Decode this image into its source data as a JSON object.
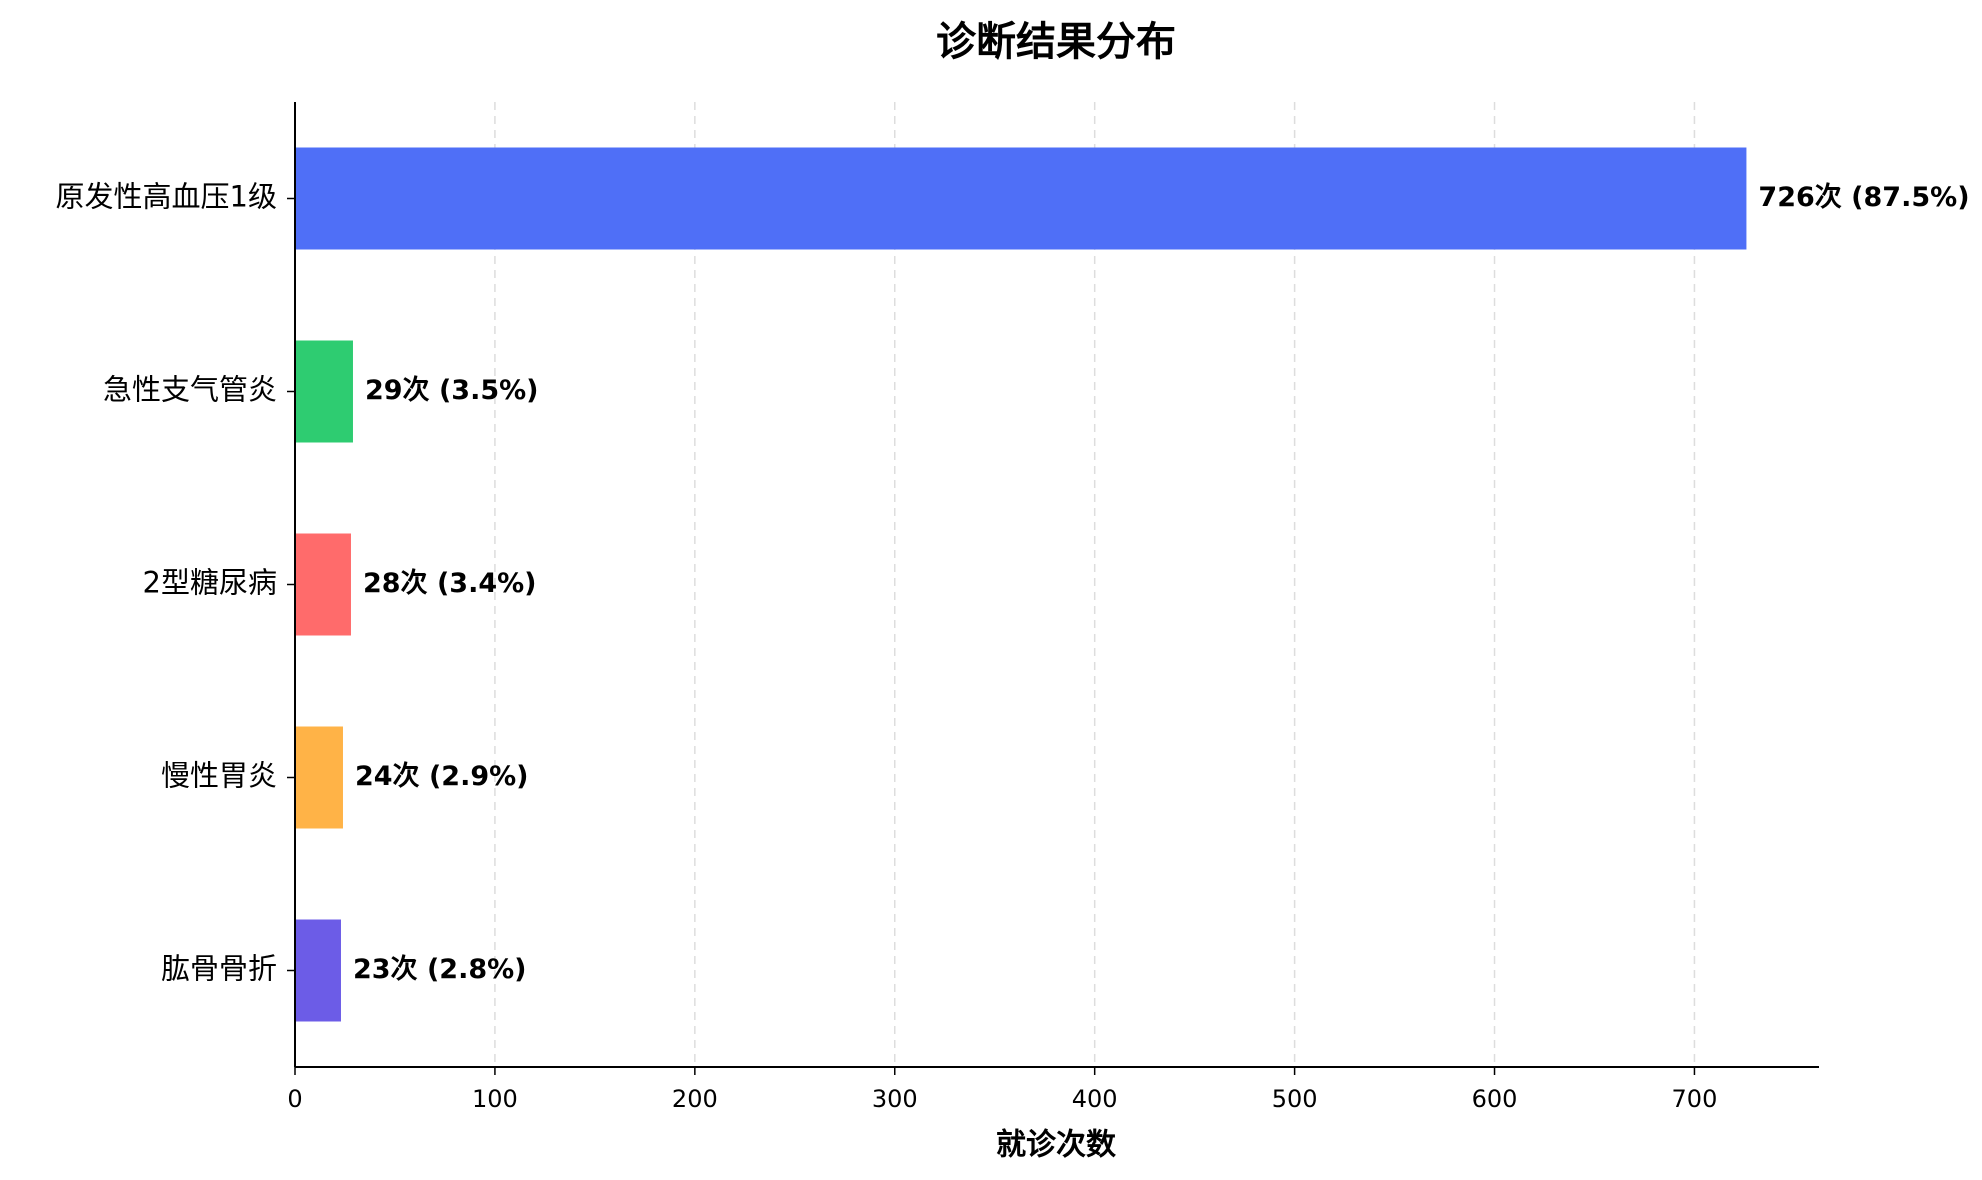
{
  "chart_data": {
    "type": "barh",
    "title": "诊断结果分布",
    "xlabel": "就诊次数",
    "categories": [
      "原发性高血压1级",
      "急性支气管炎",
      "2型糖尿病",
      "慢性胃炎",
      "肱骨骨折"
    ],
    "values": [
      726,
      29,
      28,
      24,
      23
    ],
    "value_labels": [
      "726次 (87.5%)",
      "29次 (3.5%)",
      "28次 (3.4%)",
      "24次 (2.9%)",
      "23次 (2.8%)"
    ],
    "colors": [
      "#4f6ff7",
      "#2ecc71",
      "#ff6b6b",
      "#ffb347",
      "#6c5ce7"
    ],
    "xlim": [
      0,
      762.3
    ],
    "xticks": [
      0,
      100,
      200,
      300,
      400,
      500,
      600,
      700
    ],
    "grid": true
  }
}
